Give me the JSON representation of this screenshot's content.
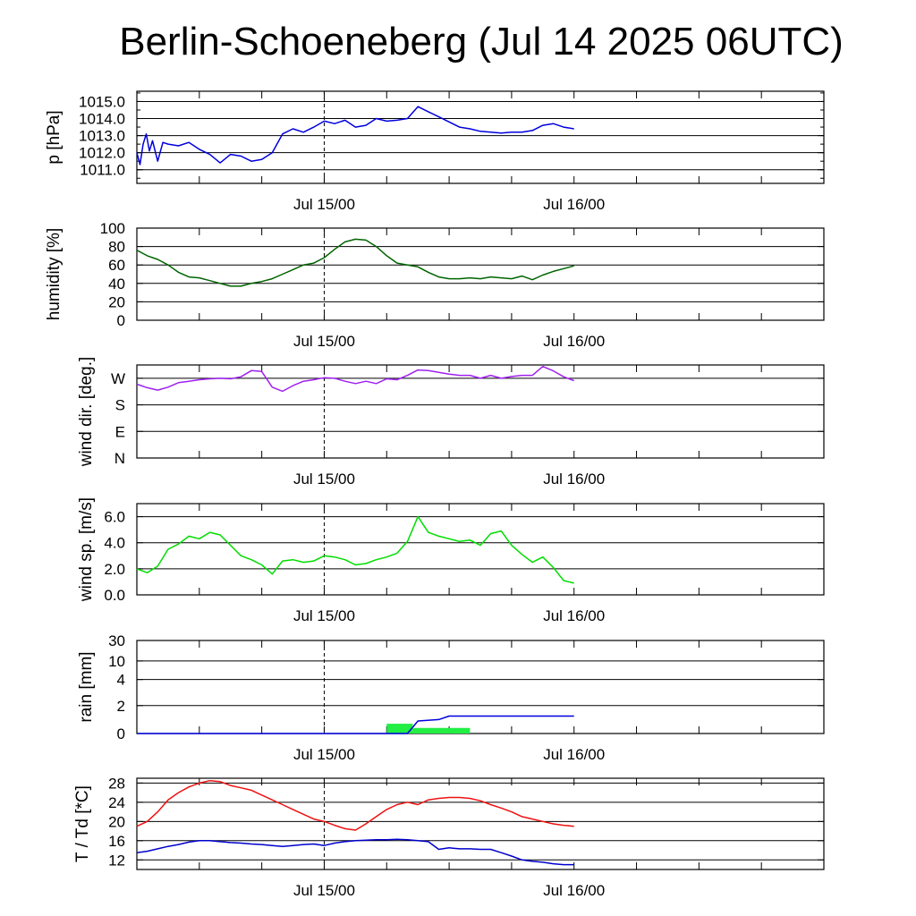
{
  "title": "Berlin-Schoeneberg (Jul 14 2025 06UTC)",
  "colors": {
    "pressure": "#0000dd",
    "humidity": "#006400",
    "wind_dir": "#a020f0",
    "wind_speed": "#00dd00",
    "rain_total": "#0000dd",
    "rain_bar": "#22ee44",
    "temperature": "#ee1111",
    "dewpoint": "#0000cc"
  },
  "chart_data": [
    {
      "type": "line",
      "ylabel": "p [hPa]",
      "xlim": [
        -18,
        48
      ],
      "ylim": [
        1010.2,
        1015.6
      ],
      "yticks": [
        1011.0,
        1012.0,
        1013.0,
        1014.0,
        1015.0
      ],
      "yticklabels": [
        "1011.0",
        "1012.0",
        "1013.0",
        "1014.0",
        "1015.0"
      ],
      "hlines": [
        1011.0,
        1012.0,
        1013.0,
        1014.0,
        1015.0
      ],
      "xticks": [
        0,
        24
      ],
      "xticklabels": [
        "Jul 15/00",
        "Jul 16/00"
      ],
      "series": [
        {
          "x": [
            -18,
            -17.7,
            -17.4,
            -17.1,
            -16.8,
            -16.5,
            -16,
            -15.5,
            -15,
            -14,
            -13,
            -12,
            -11,
            -10,
            -9,
            -8,
            -7,
            -6,
            -5,
            -4,
            -3,
            -2,
            -1,
            0,
            1,
            2,
            3,
            4,
            5,
            6,
            7,
            8,
            9,
            10,
            11,
            12,
            13,
            14,
            15,
            16,
            17,
            18,
            19,
            20,
            21,
            22,
            23,
            24
          ],
          "y": [
            1012,
            1011.3,
            1012.5,
            1013.1,
            1012.1,
            1012.7,
            1011.5,
            1012.6,
            1012.5,
            1012.4,
            1012.6,
            1012.2,
            1011.9,
            1011.4,
            1011.9,
            1011.8,
            1011.5,
            1011.6,
            1012,
            1013.1,
            1013.4,
            1013.2,
            1013.5,
            1013.85,
            1013.7,
            1013.9,
            1013.5,
            1013.6,
            1014,
            1013.85,
            1013.9,
            1014,
            1014.7,
            1014.4,
            1014.1,
            1013.8,
            1013.5,
            1013.4,
            1013.25,
            1013.2,
            1013.15,
            1013.2,
            1013.2,
            1013.3,
            1013.6,
            1013.7,
            1013.5,
            1013.4
          ]
        }
      ]
    },
    {
      "type": "line",
      "ylabel": "humidity [%]",
      "xlim": [
        -18,
        48
      ],
      "ylim": [
        0,
        100
      ],
      "yticks": [
        0,
        20,
        40,
        60,
        80,
        100
      ],
      "yticklabels": [
        "0",
        "20",
        "40",
        "60",
        "80",
        "100"
      ],
      "hlines": [
        20,
        40,
        60,
        80
      ],
      "xticks": [
        0,
        24
      ],
      "xticklabels": [
        "Jul 15/00",
        "Jul 16/00"
      ],
      "series": [
        {
          "x": [
            -18,
            -17,
            -16,
            -15,
            -14,
            -13,
            -12,
            -11,
            -10,
            -9,
            -8,
            -7,
            -6,
            -5,
            -4,
            -3,
            -2,
            -1,
            0,
            1,
            2,
            3,
            4,
            5,
            6,
            7,
            8,
            9,
            10,
            11,
            12,
            13,
            14,
            15,
            16,
            17,
            18,
            19,
            20,
            21,
            22,
            23,
            24
          ],
          "y": [
            76,
            70,
            66,
            60,
            52,
            47,
            46,
            43,
            40,
            37,
            37,
            40,
            42,
            45,
            50,
            55,
            60,
            62,
            68,
            77,
            85,
            88,
            87,
            80,
            70,
            62,
            60,
            58,
            52,
            47,
            45,
            45,
            46,
            45,
            47,
            46,
            45,
            48,
            44,
            49,
            53,
            56,
            59
          ]
        }
      ]
    },
    {
      "type": "line",
      "ylabel": "wind dir. [deg.]",
      "xlim": [
        -18,
        48
      ],
      "ylim": [
        0,
        315
      ],
      "yticks": [
        0,
        90,
        180,
        270
      ],
      "yticklabels": [
        "N",
        "E",
        "S",
        "W"
      ],
      "hlines": [
        90,
        180,
        270
      ],
      "xticks": [
        0,
        24
      ],
      "xticklabels": [
        "Jul 15/00",
        "Jul 16/00"
      ],
      "series": [
        {
          "x": [
            -18,
            -17,
            -16,
            -15,
            -14,
            -13,
            -12,
            -11,
            -10,
            -9,
            -8,
            -7,
            -6,
            -5,
            -4,
            -3,
            -2,
            -1,
            0,
            1,
            2,
            3,
            4,
            5,
            6,
            7,
            8,
            9,
            10,
            11,
            12,
            13,
            14,
            15,
            16,
            17,
            18,
            19,
            20,
            21,
            22,
            23,
            24
          ],
          "y": [
            250,
            238,
            230,
            240,
            255,
            260,
            265,
            268,
            270,
            268,
            275,
            296,
            293,
            240,
            226,
            245,
            260,
            265,
            272,
            270,
            260,
            252,
            260,
            252,
            268,
            265,
            280,
            298,
            296,
            290,
            284,
            280,
            280,
            270,
            280,
            270,
            276,
            280,
            280,
            310,
            295,
            275,
            262
          ]
        }
      ]
    },
    {
      "type": "line",
      "ylabel": "wind sp. [m/s]",
      "xlim": [
        -18,
        48
      ],
      "ylim": [
        0,
        7
      ],
      "yticks": [
        0,
        2,
        4,
        6
      ],
      "yticklabels": [
        "0.0",
        "2.0",
        "4.0",
        "6.0"
      ],
      "hlines": [
        2,
        4,
        6
      ],
      "xticks": [
        0,
        24
      ],
      "xticklabels": [
        "Jul 15/00",
        "Jul 16/00"
      ],
      "series": [
        {
          "x": [
            -18,
            -17,
            -16,
            -15,
            -14,
            -13,
            -12,
            -11,
            -10,
            -9,
            -8,
            -7,
            -6,
            -5,
            -4,
            -3,
            -2,
            -1,
            0,
            1,
            2,
            3,
            4,
            5,
            6,
            7,
            8,
            9,
            10,
            11,
            12,
            13,
            14,
            15,
            16,
            17,
            18,
            19,
            20,
            21,
            22,
            23,
            24
          ],
          "y": [
            2,
            1.7,
            2.2,
            3.5,
            3.9,
            4.5,
            4.3,
            4.8,
            4.6,
            3.8,
            3.0,
            2.7,
            2.3,
            1.6,
            2.6,
            2.7,
            2.5,
            2.6,
            3.0,
            2.9,
            2.7,
            2.3,
            2.4,
            2.7,
            2.9,
            3.2,
            4.1,
            6.0,
            4.8,
            4.5,
            4.3,
            4.1,
            4.2,
            3.8,
            4.7,
            4.9,
            3.8,
            3.1,
            2.5,
            2.9,
            2.1,
            1.1,
            0.9
          ]
        }
      ]
    },
    {
      "type": "bar",
      "ylabel": "rain [mm]",
      "xlim": [
        -18,
        48
      ],
      "ylim": [
        0,
        30
      ],
      "scale": "custom",
      "yticks": [
        0,
        2,
        4,
        10,
        30
      ],
      "yticklabels": [
        "0",
        "2",
        "4",
        "10",
        "30"
      ],
      "hlines": [
        2,
        4,
        10,
        30
      ],
      "xticks": [
        0,
        24
      ],
      "xticklabels": [
        "Jul 15/00",
        "Jul 16/00"
      ],
      "bars": [
        {
          "x0": 6,
          "x1": 8.5,
          "value": 0.7
        },
        {
          "x0": 8.5,
          "x1": 11,
          "value": 0.4
        },
        {
          "x0": 11,
          "x1": 14,
          "value": 0.4
        }
      ],
      "series": [
        {
          "x": [
            -18,
            6,
            8,
            9,
            11,
            12,
            18,
            24
          ],
          "y": [
            0,
            0,
            0,
            0.9,
            1.0,
            1.25,
            1.25,
            1.25
          ]
        }
      ]
    },
    {
      "type": "line",
      "ylabel": "T / Td [*C]",
      "xlim": [
        -18,
        48
      ],
      "ylim": [
        10,
        29
      ],
      "yticks": [
        12,
        16,
        20,
        24,
        28
      ],
      "yticklabels": [
        "12",
        "16",
        "20",
        "24",
        "28"
      ],
      "hlines": [
        12,
        16,
        20,
        24,
        28
      ],
      "xticks": [
        0,
        24
      ],
      "xticklabels": [
        "Jul 15/00",
        "Jul 16/00"
      ],
      "series": [
        {
          "x": [
            -18,
            -17,
            -16,
            -15,
            -14,
            -13,
            -12,
            -11,
            -10,
            -9,
            -8,
            -7,
            -6,
            -5,
            -4,
            -3,
            -2,
            -1,
            0,
            1,
            2,
            3,
            4,
            5,
            6,
            7,
            8,
            9,
            10,
            11,
            12,
            13,
            14,
            15,
            16,
            17,
            18,
            19,
            20,
            21,
            22,
            23,
            24
          ],
          "y": [
            19,
            20,
            22,
            24.5,
            26,
            27.2,
            28,
            28.5,
            28.3,
            27.5,
            27,
            26.5,
            25.5,
            24.5,
            23.5,
            22.5,
            21.5,
            20.5,
            20,
            19.2,
            18.5,
            18.2,
            19.5,
            21,
            22.5,
            23.5,
            24,
            23.5,
            24.5,
            24.8,
            25,
            25,
            24.8,
            24.3,
            23.5,
            22.8,
            22,
            21,
            20.5,
            20,
            19.5,
            19.2,
            19
          ]
        },
        {
          "x": [
            -18,
            -17,
            -16,
            -15,
            -14,
            -13,
            -12,
            -11,
            -10,
            -9,
            -8,
            -7,
            -6,
            -5,
            -4,
            -3,
            -2,
            -1,
            0,
            1,
            2,
            3,
            4,
            5,
            6,
            7,
            8,
            9,
            10,
            11,
            12,
            13,
            14,
            15,
            16,
            17,
            18,
            19,
            20,
            21,
            22,
            23,
            24
          ],
          "y": [
            13.5,
            13.8,
            14.3,
            14.8,
            15.2,
            15.7,
            16,
            16,
            15.8,
            15.6,
            15.5,
            15.3,
            15.2,
            15,
            14.8,
            15,
            15.2,
            15.3,
            15,
            15.5,
            15.8,
            16,
            16.1,
            16.2,
            16.2,
            16.3,
            16.2,
            16,
            15.8,
            14.2,
            14.5,
            14.3,
            14.3,
            14.2,
            14.2,
            13.5,
            12.8,
            12,
            11.7,
            11.5,
            11.2,
            11,
            11
          ]
        }
      ]
    }
  ]
}
